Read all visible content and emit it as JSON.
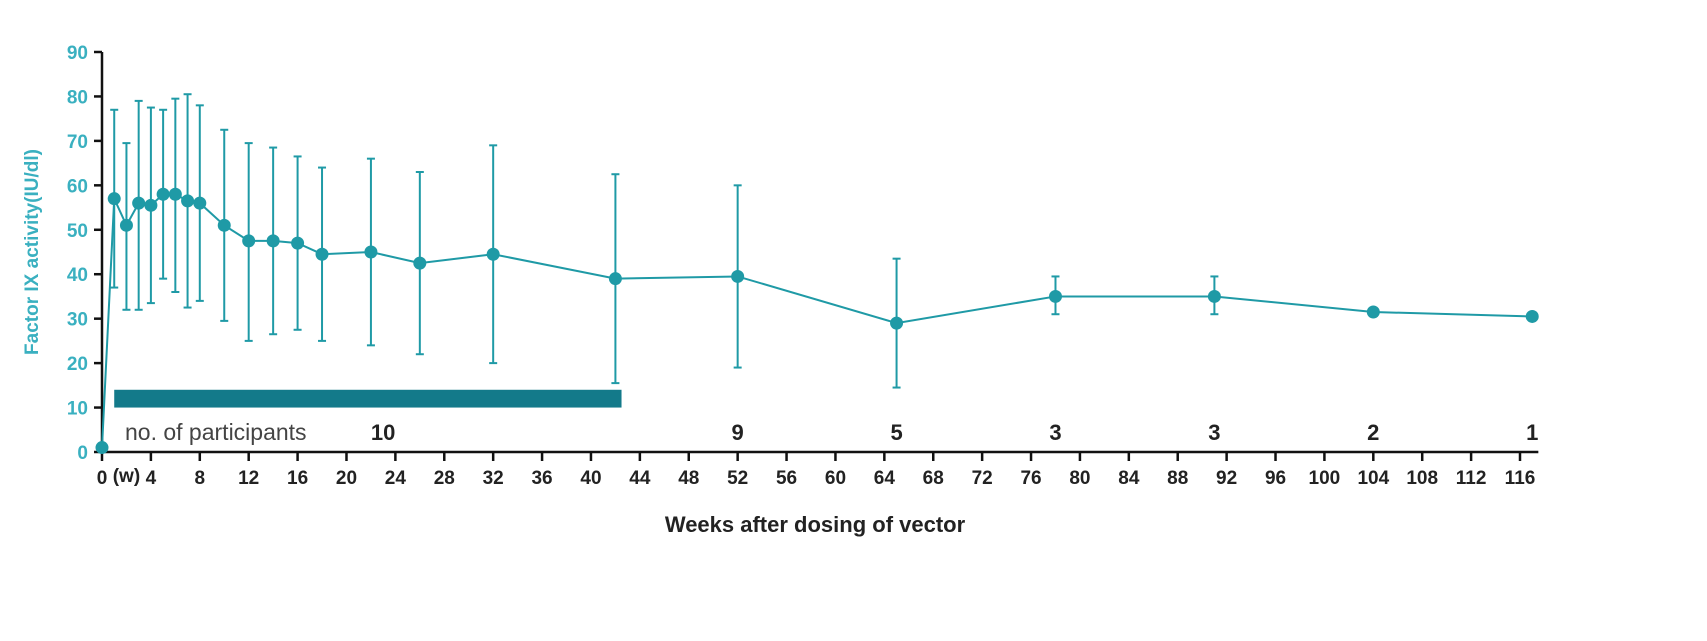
{
  "chart_data": {
    "type": "line",
    "title": "",
    "xlabel": "Weeks after dosing of vector",
    "ylabel": "Factor IX activity(IU/dl)",
    "xlim": [
      0,
      117
    ],
    "ylim": [
      0,
      90
    ],
    "x_ticks": [
      0,
      4,
      8,
      12,
      16,
      20,
      24,
      28,
      32,
      36,
      40,
      44,
      48,
      52,
      56,
      60,
      64,
      68,
      72,
      76,
      80,
      84,
      88,
      92,
      96,
      100,
      104,
      108,
      112,
      116
    ],
    "x_tick_marker": "(w)",
    "y_ticks": [
      0,
      10,
      20,
      30,
      40,
      50,
      60,
      70,
      80,
      90
    ],
    "grid": false,
    "colors": {
      "series": "#1f9aa6",
      "bar": "#137a8a",
      "ylabel": "#3ab0c0",
      "axis": "#111111"
    },
    "series": [
      {
        "x": [
          0,
          1,
          2,
          3,
          4,
          5,
          6,
          7,
          8,
          10,
          12,
          14,
          16,
          18,
          22,
          26,
          32,
          42,
          52,
          65,
          78,
          91,
          104,
          117
        ],
        "y": [
          1,
          57,
          51,
          56,
          55.5,
          58,
          58,
          56.5,
          56,
          51,
          47.5,
          47.5,
          47,
          44.5,
          45,
          42.5,
          44.5,
          39,
          39.5,
          29,
          35,
          35,
          31.5,
          30.5
        ],
        "err_low": [
          null,
          37,
          32,
          32,
          33.5,
          39,
          36,
          32.5,
          34,
          29.5,
          25,
          26.5,
          27.5,
          25,
          24,
          22,
          20,
          15.5,
          19,
          14.5,
          31,
          31,
          null,
          null
        ],
        "err_high": [
          null,
          77,
          69.5,
          79,
          77.5,
          77,
          79.5,
          80.5,
          78,
          72.5,
          69.5,
          68.5,
          66.5,
          64,
          66,
          63,
          69,
          62.5,
          60,
          43.5,
          39.5,
          39.5,
          null,
          null
        ]
      }
    ],
    "period_bar": {
      "x_start": 1,
      "x_end": 42.5,
      "y_low": 10,
      "y_high": 14
    },
    "participants": {
      "label": "no. of participants",
      "counts": [
        {
          "x": 23,
          "n": "10"
        },
        {
          "x": 52,
          "n": "9"
        },
        {
          "x": 65,
          "n": "5"
        },
        {
          "x": 78,
          "n": "3"
        },
        {
          "x": 91,
          "n": "3"
        },
        {
          "x": 104,
          "n": "2"
        },
        {
          "x": 117,
          "n": "1"
        }
      ]
    }
  }
}
